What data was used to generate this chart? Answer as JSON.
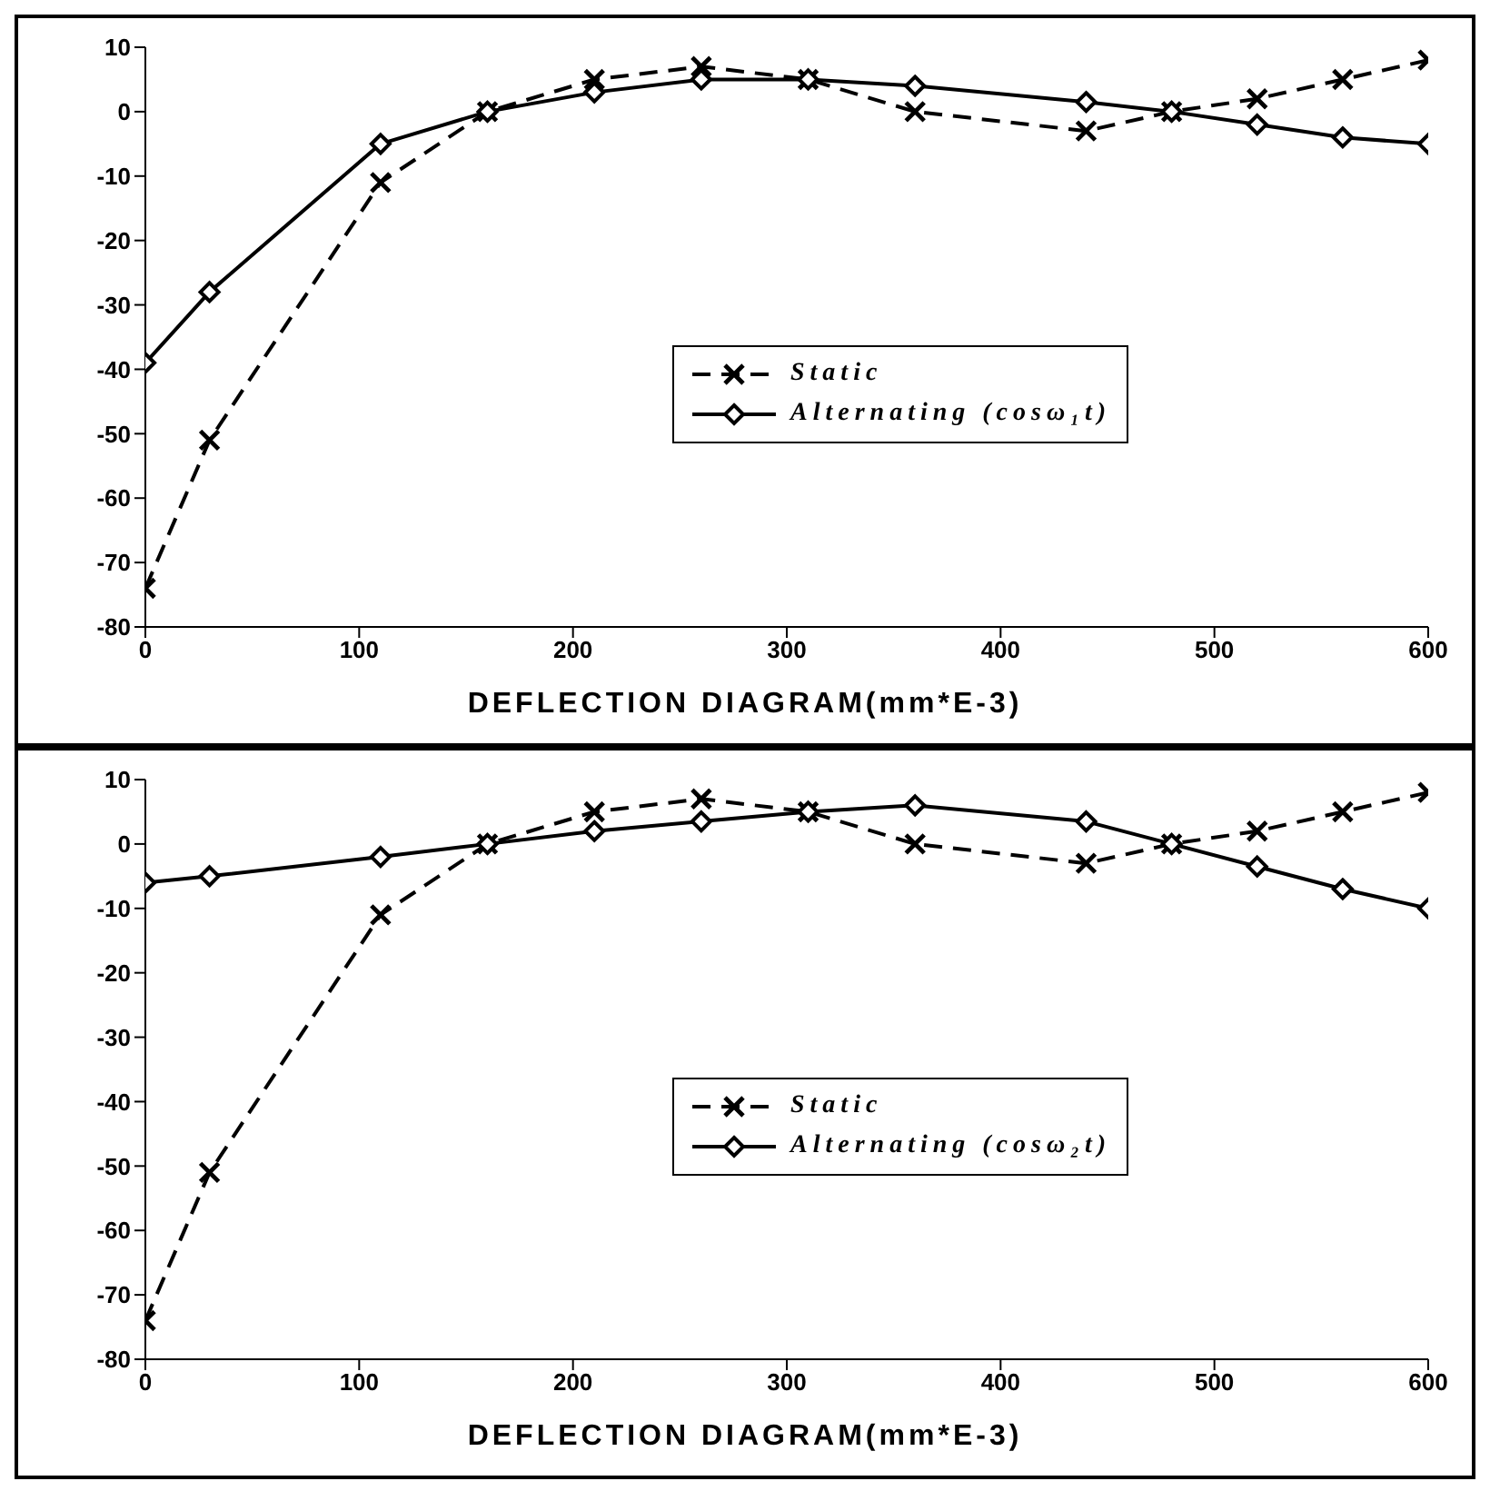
{
  "chart_data": [
    {
      "type": "line",
      "title": "DEFLECTION DIAGRAM(mm*E-3)",
      "x": [
        0,
        30,
        110,
        160,
        210,
        260,
        310,
        360,
        440,
        480,
        520,
        560,
        600
      ],
      "xlim": [
        0,
        600
      ],
      "xticks": [
        0,
        100,
        200,
        300,
        400,
        500,
        600
      ],
      "ylim": [
        -80,
        10
      ],
      "yticks": [
        -80,
        -70,
        -60,
        -50,
        -40,
        -30,
        -20,
        -10,
        0,
        10
      ],
      "grid": false,
      "legend": "center",
      "series": [
        {
          "name": "Static",
          "color": "#000000",
          "marker": "cross",
          "line_style": "dashed",
          "values": [
            -74,
            -51,
            -11,
            0,
            5,
            7,
            5,
            0,
            -3,
            0,
            2,
            5,
            8
          ]
        },
        {
          "name": "Alternating (cosω₁t)",
          "color": "#000000",
          "marker": "diamond",
          "line_style": "solid",
          "values": [
            -39,
            -28,
            -5,
            0,
            3,
            5,
            5,
            4,
            1.5,
            0,
            -2,
            -4,
            -5
          ]
        }
      ]
    },
    {
      "type": "line",
      "title": "DEFLECTION DIAGRAM(mm*E-3)",
      "x": [
        0,
        30,
        110,
        160,
        210,
        260,
        310,
        360,
        440,
        480,
        520,
        560,
        600
      ],
      "xlim": [
        0,
        600
      ],
      "xticks": [
        0,
        100,
        200,
        300,
        400,
        500,
        600
      ],
      "ylim": [
        -80,
        10
      ],
      "yticks": [
        -80,
        -70,
        -60,
        -50,
        -40,
        -30,
        -20,
        -10,
        0,
        10
      ],
      "grid": false,
      "legend": "center",
      "series": [
        {
          "name": "Static",
          "color": "#000000",
          "marker": "cross",
          "line_style": "dashed",
          "values": [
            -74,
            -51,
            -11,
            0,
            5,
            7,
            5,
            0,
            -3,
            0,
            2,
            5,
            8
          ]
        },
        {
          "name": "Alternating (cosω₂t)",
          "color": "#000000",
          "marker": "diamond",
          "line_style": "solid",
          "values": [
            -6,
            -5,
            -2,
            0,
            2,
            3.5,
            5,
            6,
            3.5,
            0,
            -3.5,
            -7,
            -10
          ]
        }
      ]
    }
  ]
}
